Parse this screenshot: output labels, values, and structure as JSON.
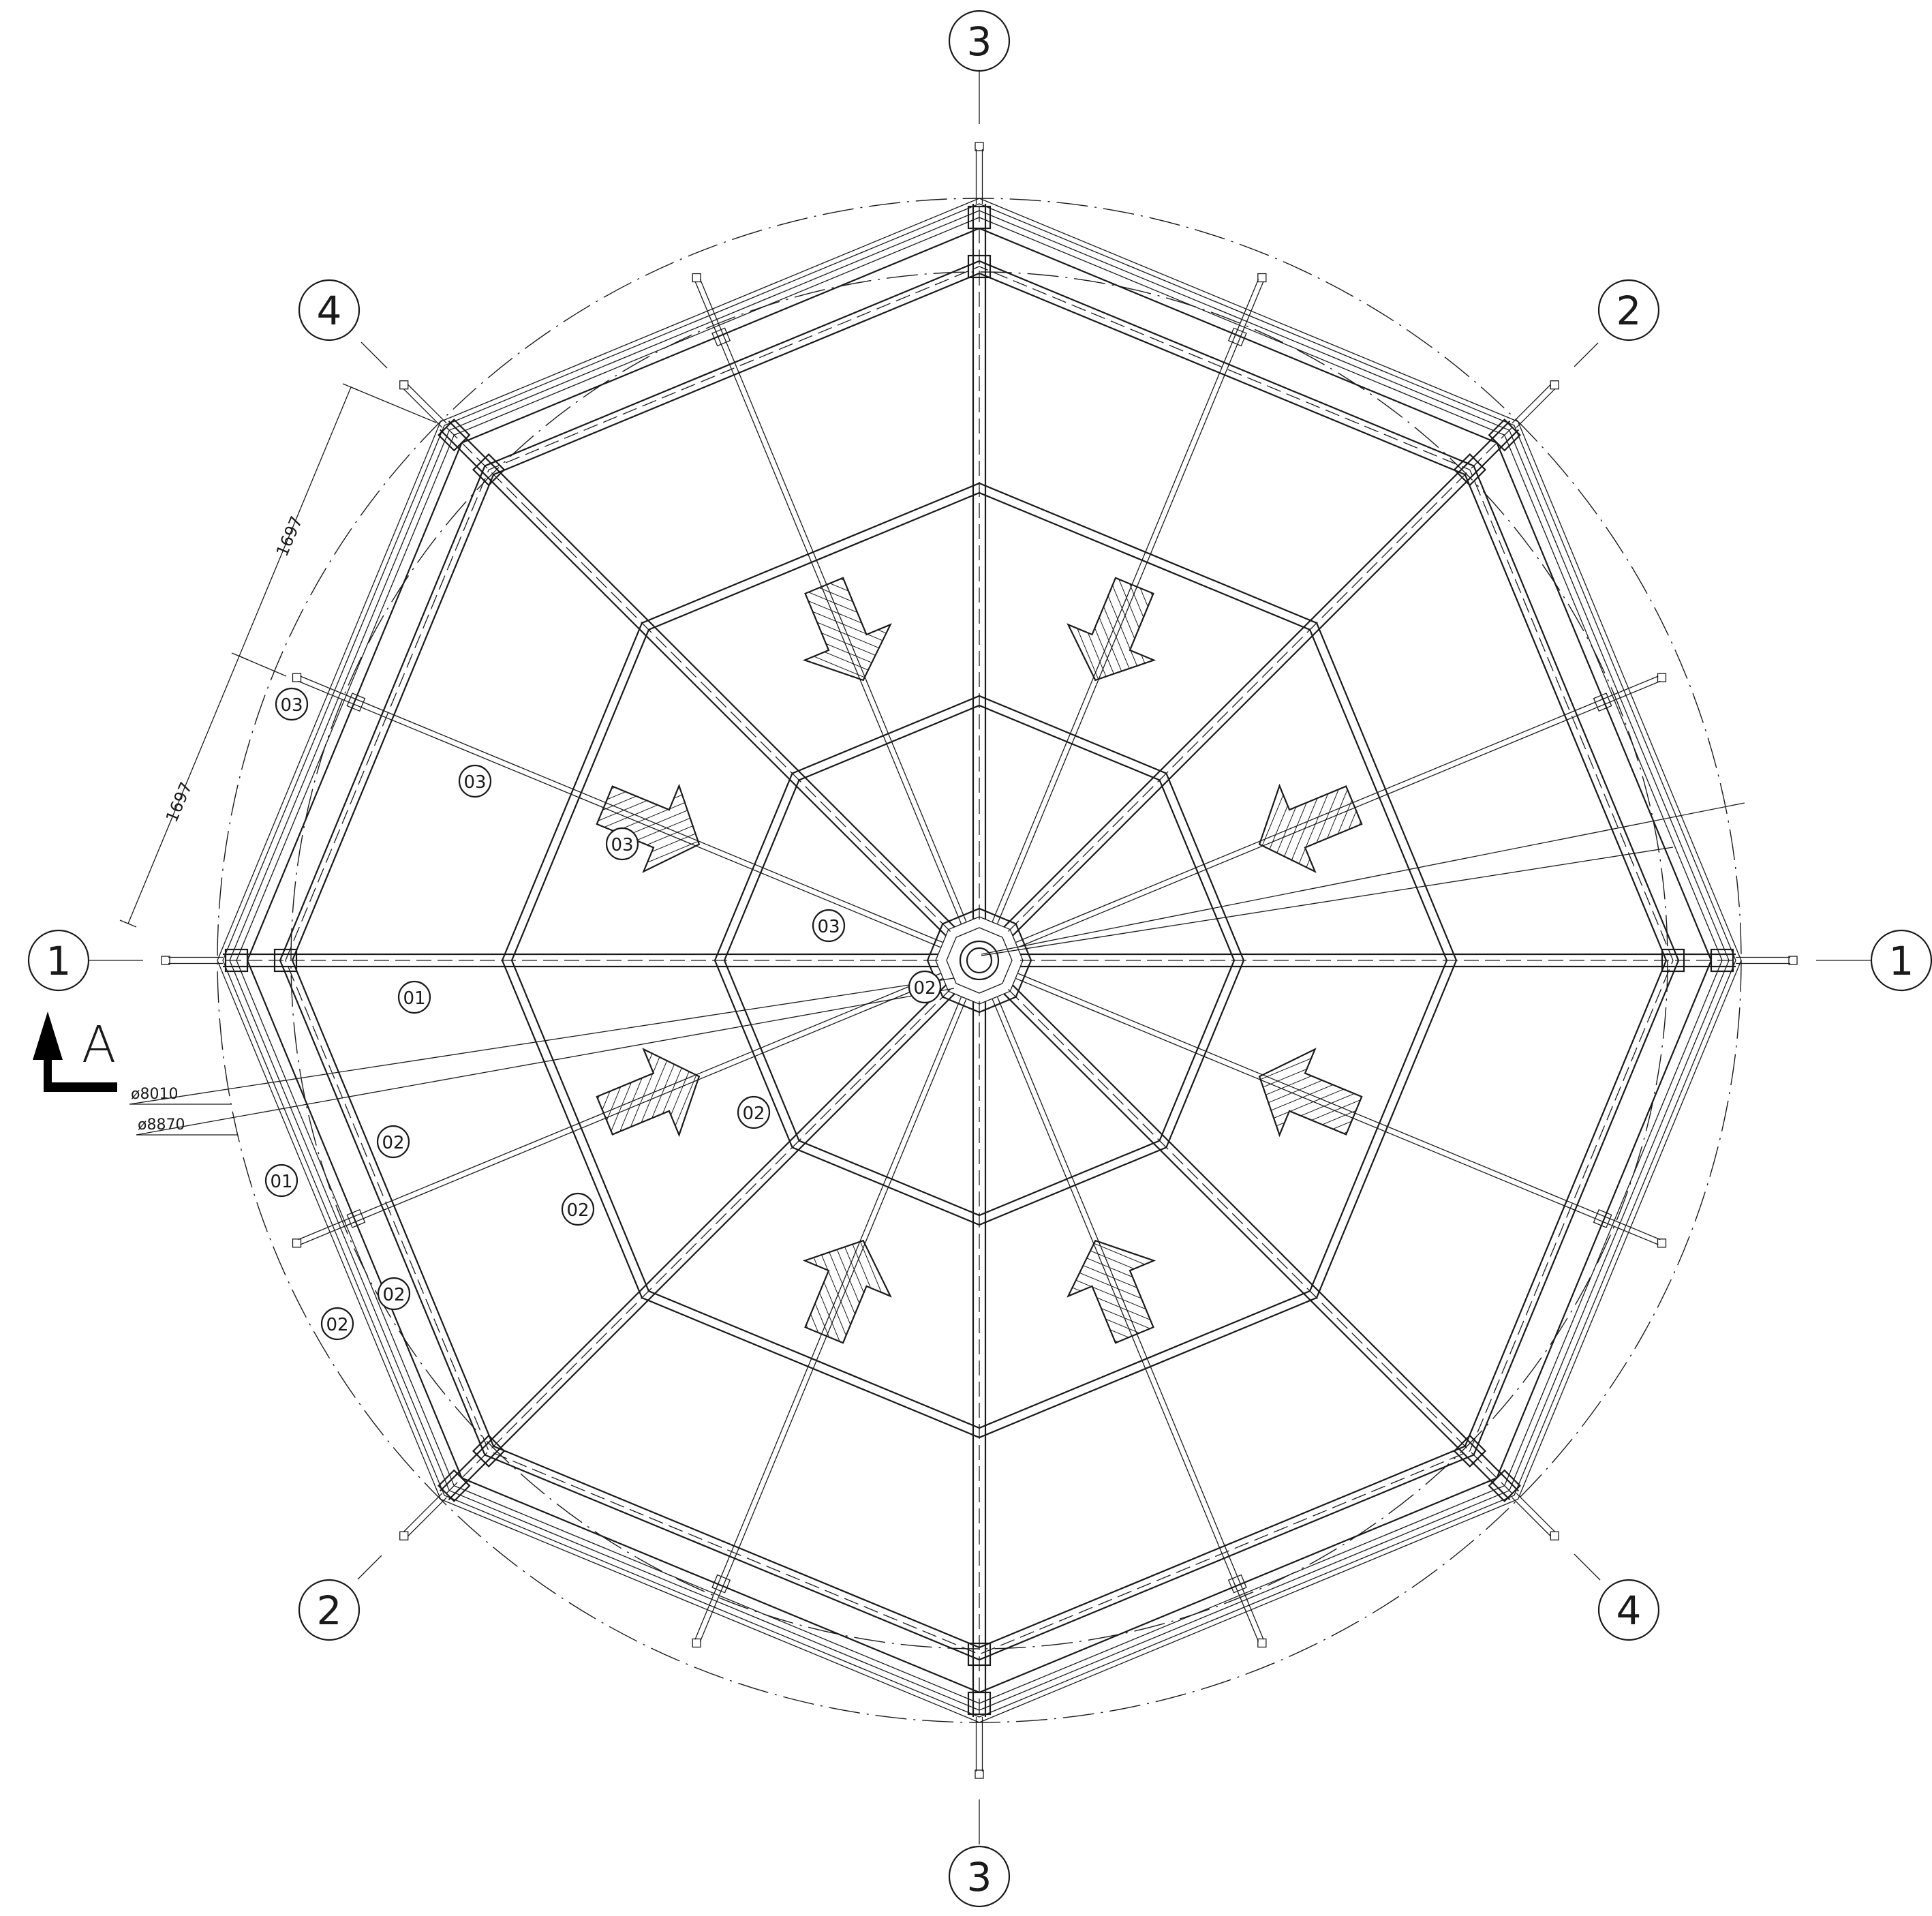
{
  "plan": {
    "axes": [
      {
        "label": "1",
        "angle_deg": 0
      },
      {
        "label": "2",
        "angle_deg": 45
      },
      {
        "label": "3",
        "angle_deg": 90
      },
      {
        "label": "4",
        "angle_deg": 135
      }
    ],
    "dimensions": {
      "edge_dim_1": "1697",
      "edge_dim_2": "1697",
      "diam_inner": "ø8010",
      "diam_outer": "ø8870"
    },
    "section_marker": {
      "label": "A"
    },
    "member_tags": [
      {
        "label": "03",
        "pos": "outer-rafter-nw"
      },
      {
        "label": "03",
        "pos": "rafter-nw-outer"
      },
      {
        "label": "03",
        "pos": "rafter-nw-mid"
      },
      {
        "label": "03",
        "pos": "rafter-nw-inner"
      },
      {
        "label": "01",
        "pos": "radial-w"
      },
      {
        "label": "02",
        "pos": "hub"
      },
      {
        "label": "02",
        "pos": "purlin-sw"
      },
      {
        "label": "02",
        "pos": "ring-w-outer"
      },
      {
        "label": "02",
        "pos": "ring-w-mid"
      },
      {
        "label": "01",
        "pos": "beam-w"
      },
      {
        "label": "02",
        "pos": "beam-w-lower"
      },
      {
        "label": "02",
        "pos": "ring-sw-outer"
      }
    ],
    "colors": {
      "line": "#1a1a1a",
      "background": "#ffffff"
    }
  }
}
